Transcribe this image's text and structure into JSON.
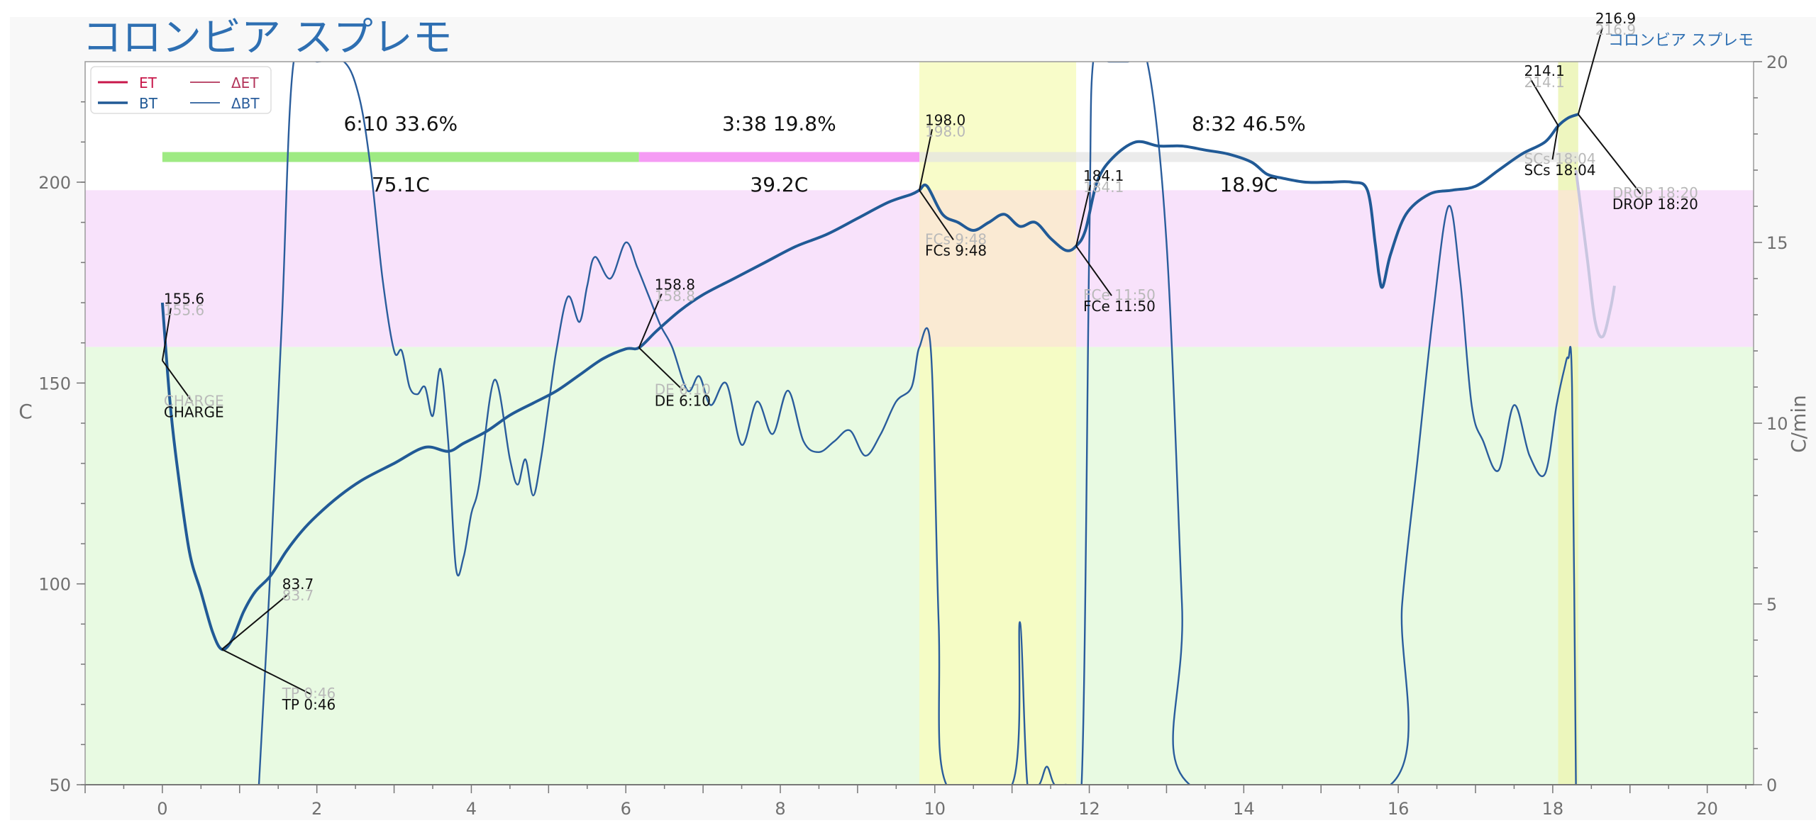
{
  "title": "コロンビア スプレモ",
  "watermark": "コロンビア スプレモ",
  "colors": {
    "et": "#c8174a",
    "bt": "#215a96",
    "delta_et": "#b3345a",
    "delta_bt": "#2a5d9c",
    "title": "#2e6fb2",
    "phase_dry": "#7de35a",
    "phase_maillard": "#f27af0",
    "phase_dev": "#d9d9d9",
    "zone_green": "#e8fae2",
    "zone_pink": "#f8e2fb",
    "fc_band": "#f7fbc0",
    "sc_band": "#ecf5b8",
    "fc_pink_overlap": "#fbe6d6"
  },
  "chart_data": {
    "type": "line",
    "xlabel": "",
    "ylabel": "C",
    "y2label": "C/min",
    "xlim": [
      -1,
      20.6
    ],
    "ylim": [
      50,
      230
    ],
    "y2lim": [
      0,
      20
    ],
    "xticks": [
      0,
      2,
      4,
      6,
      8,
      10,
      12,
      14,
      16,
      18,
      20
    ],
    "yticks": [
      50,
      100,
      150,
      200
    ],
    "y2ticks": [
      0,
      5,
      10,
      15,
      20
    ],
    "grid": false,
    "legend": {
      "placement": "top-left",
      "entries": [
        "ET",
        "BT",
        "ΔET",
        "ΔBT"
      ]
    },
    "zones": [
      {
        "from": 50,
        "to": 159,
        "color": "#e8fae2"
      },
      {
        "from": 159,
        "to": 198,
        "color": "#f8e2fb"
      }
    ],
    "bands": [
      {
        "from": 9.8,
        "to": 11.83,
        "label": "first-crack"
      },
      {
        "from": 18.07,
        "to": 18.33,
        "label": "second-crack"
      }
    ],
    "phases": [
      {
        "label": "6:10  33.6%",
        "temp": "75.1C",
        "from": 0,
        "to": 6.17,
        "color": "#7de35a"
      },
      {
        "label": "3:38  19.8%",
        "temp": "39.2C",
        "from": 6.17,
        "to": 9.8,
        "color": "#f27af0"
      },
      {
        "label": "8:32  46.5%",
        "temp": "18.9C",
        "from": 9.8,
        "to": 18.33,
        "color": "#d9d9d9"
      }
    ],
    "series": [
      {
        "name": "BT",
        "axis": "left",
        "x": [
          0,
          0.1,
          0.2,
          0.35,
          0.5,
          0.65,
          0.77,
          0.9,
          1.05,
          1.2,
          1.4,
          1.6,
          1.8,
          2.0,
          2.3,
          2.6,
          3.0,
          3.4,
          3.7,
          3.9,
          4.2,
          4.5,
          4.8,
          5.1,
          5.4,
          5.7,
          6.0,
          6.17,
          6.4,
          6.7,
          7.0,
          7.4,
          7.8,
          8.2,
          8.6,
          9.0,
          9.4,
          9.7,
          9.8,
          9.9,
          10.1,
          10.3,
          10.5,
          10.7,
          10.9,
          11.1,
          11.3,
          11.5,
          11.7,
          11.83,
          11.95,
          12.1,
          12.3,
          12.6,
          12.9,
          13.2,
          13.5,
          13.8,
          14.1,
          14.3,
          14.5,
          14.8,
          15.1,
          15.4,
          15.6,
          15.7,
          15.75,
          15.8,
          15.9,
          16.1,
          16.4,
          16.7,
          17.0,
          17.3,
          17.6,
          17.9,
          18.07,
          18.2,
          18.33
        ],
        "values": [
          170,
          145,
          128,
          108,
          98,
          88,
          83.7,
          86,
          93,
          98,
          102,
          108,
          113,
          117,
          122,
          126,
          130,
          134,
          133,
          135,
          138,
          142,
          145,
          148,
          152,
          156,
          158.5,
          158.8,
          163,
          168,
          172,
          176,
          180,
          184,
          187,
          191,
          195,
          197,
          198,
          199,
          192,
          190,
          188,
          190,
          192,
          189,
          190,
          186,
          183,
          184.1,
          188,
          200,
          206,
          210,
          209,
          209,
          208,
          207,
          205,
          202,
          201,
          200,
          200,
          200,
          198,
          185,
          177,
          174,
          182,
          192,
          197,
          198,
          199,
          203,
          207,
          210,
          214,
          216,
          216.9
        ]
      },
      {
        "name": "ΔBT",
        "axis": "right",
        "x": [
          1.25,
          1.4,
          1.55,
          1.7,
          2.0,
          2.35,
          2.55,
          2.7,
          2.85,
          3.0,
          3.1,
          3.2,
          3.3,
          3.4,
          3.5,
          3.6,
          3.7,
          3.8,
          3.9,
          4.0,
          4.1,
          4.3,
          4.5,
          4.6,
          4.7,
          4.8,
          4.9,
          5.0,
          5.1,
          5.25,
          5.4,
          5.5,
          5.6,
          5.8,
          6.0,
          6.15,
          6.3,
          6.45,
          6.6,
          6.8,
          6.95,
          7.1,
          7.3,
          7.5,
          7.7,
          7.9,
          8.1,
          8.3,
          8.5,
          8.7,
          8.9,
          9.1,
          9.3,
          9.5,
          9.7,
          9.8,
          9.95,
          10.05,
          10.15,
          11.0,
          11.1,
          11.2,
          11.35,
          11.45,
          11.55,
          11.7,
          11.9,
          12.0,
          12.05,
          12.25,
          12.5,
          12.75,
          13.0,
          13.2,
          13.3,
          15.9,
          16.05,
          16.25,
          16.45,
          16.65,
          16.8,
          16.95,
          17.1,
          17.3,
          17.5,
          17.7,
          17.9,
          18.05,
          18.15,
          18.2,
          18.25,
          18.3
        ],
        "values": [
          0,
          6,
          13,
          20,
          20,
          20,
          19,
          17,
          14,
          12,
          12,
          11,
          10.8,
          11,
          10.2,
          11.5,
          9.5,
          6,
          6.3,
          7.5,
          8.3,
          11.2,
          9,
          8.3,
          9,
          8,
          9,
          10.5,
          12,
          13.5,
          12.8,
          13.8,
          14.6,
          14,
          15,
          14.3,
          13.5,
          12.7,
          12.1,
          10.9,
          11.3,
          10.5,
          11.1,
          9.4,
          10.6,
          9.7,
          10.9,
          9.5,
          9.2,
          9.5,
          9.8,
          9.1,
          9.7,
          10.6,
          11,
          12.1,
          12,
          4.5,
          0,
          0,
          4.5,
          0,
          0,
          0.5,
          0,
          0,
          0,
          15,
          20,
          20,
          20,
          20,
          15,
          5,
          0,
          0,
          5,
          9,
          13,
          16,
          14,
          10.5,
          9.5,
          8.7,
          10.5,
          9.1,
          8.6,
          10.5,
          11.5,
          11.8,
          11,
          0
        ]
      }
    ],
    "annotations": [
      {
        "text": "155.6",
        "x": 0,
        "y": 155.6
      },
      {
        "text": "CHARGE",
        "x": 0,
        "y": 170
      },
      {
        "text": "83.7",
        "x": 0.77,
        "y": 83.7
      },
      {
        "text": "TP 0:46",
        "x": 0.77,
        "y": 83.7
      },
      {
        "text": "158.8",
        "x": 6.17,
        "y": 158.8
      },
      {
        "text": "DE 6:10",
        "x": 6.17,
        "y": 158.8
      },
      {
        "text": "198.0",
        "x": 9.8,
        "y": 198.0
      },
      {
        "text": "FCs 9:48",
        "x": 9.8,
        "y": 198.0
      },
      {
        "text": "184.1",
        "x": 11.83,
        "y": 184.1
      },
      {
        "text": "FCe 11:50",
        "x": 11.83,
        "y": 184.1
      },
      {
        "text": "214.1",
        "x": 18.07,
        "y": 214.1
      },
      {
        "text": "SCs 18:04",
        "x": 18.07,
        "y": 214.1
      },
      {
        "text": "216.9",
        "x": 18.33,
        "y": 216.9
      },
      {
        "text": "DROP 18:20",
        "x": 18.33,
        "y": 216.9
      }
    ]
  }
}
